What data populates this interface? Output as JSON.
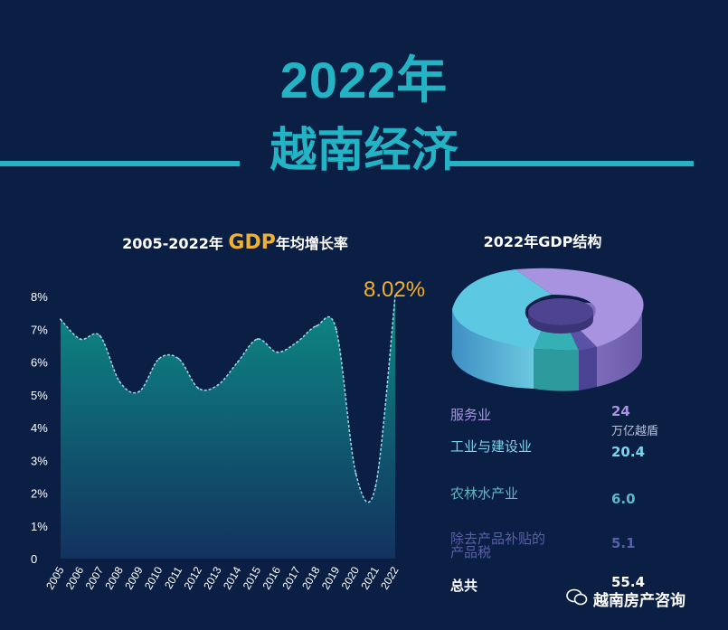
{
  "header": {
    "year": "2022年",
    "title": "越南经济"
  },
  "chart_data": [
    {
      "type": "area",
      "title_prefix": "2005-2022年 ",
      "title_highlight": "GDP",
      "title_suffix": "年均增长率",
      "x": [
        "2005",
        "2006",
        "2007",
        "2008",
        "2009",
        "2010",
        "2011",
        "2012",
        "2013",
        "2014",
        "2015",
        "2016",
        "2017",
        "2018",
        "2019",
        "2020",
        "2021",
        "2022"
      ],
      "values": [
        7.3,
        6.7,
        6.8,
        5.4,
        5.1,
        6.1,
        6.1,
        5.2,
        5.3,
        6.0,
        6.7,
        6.3,
        6.6,
        7.1,
        7.0,
        2.6,
        2.2,
        8.02
      ],
      "y_ticks": [
        "0",
        "1%",
        "2%",
        "3%",
        "4%",
        "5%",
        "6%",
        "7%",
        "8%"
      ],
      "ylim": [
        0,
        8
      ],
      "annotation": "8.02%",
      "colors": {
        "top": "#0d8a85",
        "bottom": "#12325e",
        "line": "#9fd8e6"
      }
    },
    {
      "type": "pie",
      "title": "2022年GDP结构",
      "unit": "万亿越盾",
      "slices": [
        {
          "label": "服务业",
          "value": "24",
          "color": "#a793e0"
        },
        {
          "label": "工业与建设业",
          "value": "20.4",
          "color": "#5cc8e2"
        },
        {
          "label": "农林水产业",
          "value": "6.0",
          "color": "#35b0b4"
        },
        {
          "label": "除去产品补贴的产品税",
          "value": "5.1",
          "color": "#5a52a6"
        }
      ],
      "total_label": "总共",
      "total_value": "55.4"
    }
  ],
  "watermark": "越南房产咨询"
}
